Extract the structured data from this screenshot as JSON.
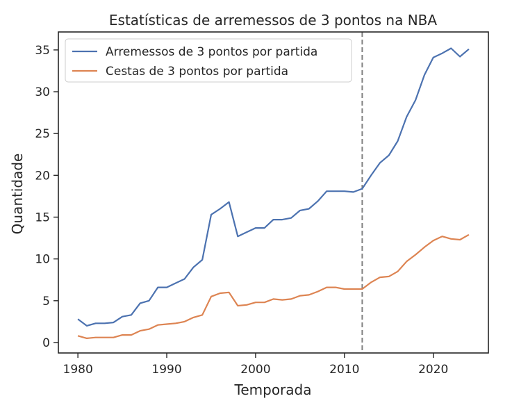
{
  "chart_data": {
    "type": "line",
    "title": "Estatísticas de arremessos de 3 pontos na NBA",
    "xlabel": "Temporada",
    "ylabel": "Quantidade",
    "xlim": [
      1977.8,
      2026.2
    ],
    "ylim": [
      -1.25,
      37.15
    ],
    "xticks": [
      1980,
      1990,
      2000,
      2010,
      2020
    ],
    "yticks": [
      0,
      5,
      10,
      15,
      20,
      25,
      30,
      35
    ],
    "grid": false,
    "legend_position": "top-left",
    "x": [
      1980,
      1981,
      1982,
      1983,
      1984,
      1985,
      1986,
      1987,
      1988,
      1989,
      1990,
      1991,
      1992,
      1993,
      1994,
      1995,
      1996,
      1997,
      1998,
      1999,
      2000,
      2001,
      2002,
      2003,
      2004,
      2005,
      2006,
      2007,
      2008,
      2009,
      2010,
      2011,
      2012,
      2013,
      2014,
      2015,
      2016,
      2017,
      2018,
      2019,
      2020,
      2021,
      2022,
      2023,
      2024
    ],
    "series": [
      {
        "name": "Arremessos de 3 pontos por partida",
        "color": "#4c72b0",
        "values": [
          2.8,
          2.0,
          2.3,
          2.3,
          2.4,
          3.1,
          3.3,
          4.7,
          5.0,
          6.6,
          6.6,
          7.1,
          7.6,
          9.0,
          9.9,
          15.3,
          16.0,
          16.8,
          12.7,
          13.2,
          13.7,
          13.7,
          14.7,
          14.7,
          14.9,
          15.8,
          16.0,
          16.9,
          18.1,
          18.1,
          18.1,
          18.0,
          18.4,
          20.0,
          21.5,
          22.4,
          24.1,
          27.0,
          29.0,
          32.0,
          34.1,
          34.6,
          35.2,
          34.2,
          35.1
        ]
      },
      {
        "name": "Cestas de 3 pontos por partida",
        "color": "#dd8452",
        "values": [
          0.8,
          0.5,
          0.6,
          0.6,
          0.6,
          0.9,
          0.9,
          1.4,
          1.6,
          2.1,
          2.2,
          2.3,
          2.5,
          3.0,
          3.3,
          5.5,
          5.9,
          6.0,
          4.4,
          4.5,
          4.8,
          4.8,
          5.2,
          5.1,
          5.2,
          5.6,
          5.7,
          6.1,
          6.6,
          6.6,
          6.4,
          6.4,
          6.4,
          7.2,
          7.8,
          7.9,
          8.5,
          9.7,
          10.5,
          11.4,
          12.2,
          12.7,
          12.4,
          12.3,
          12.9
        ]
      }
    ],
    "vline": {
      "x": 2012,
      "color": "#808080",
      "style": "dashed"
    }
  }
}
